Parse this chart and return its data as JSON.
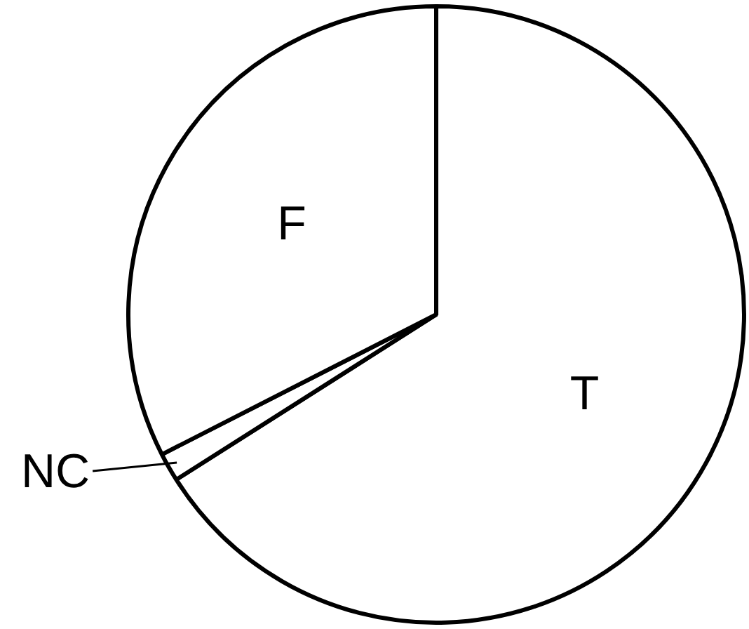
{
  "chart_data": {
    "type": "pie",
    "categories": [
      "T",
      "NC",
      "F"
    ],
    "values": [
      66,
      1.5,
      32.5
    ],
    "colors": [
      "#ffffff",
      "#ffffff",
      "#ffffff"
    ],
    "legend": false
  }
}
